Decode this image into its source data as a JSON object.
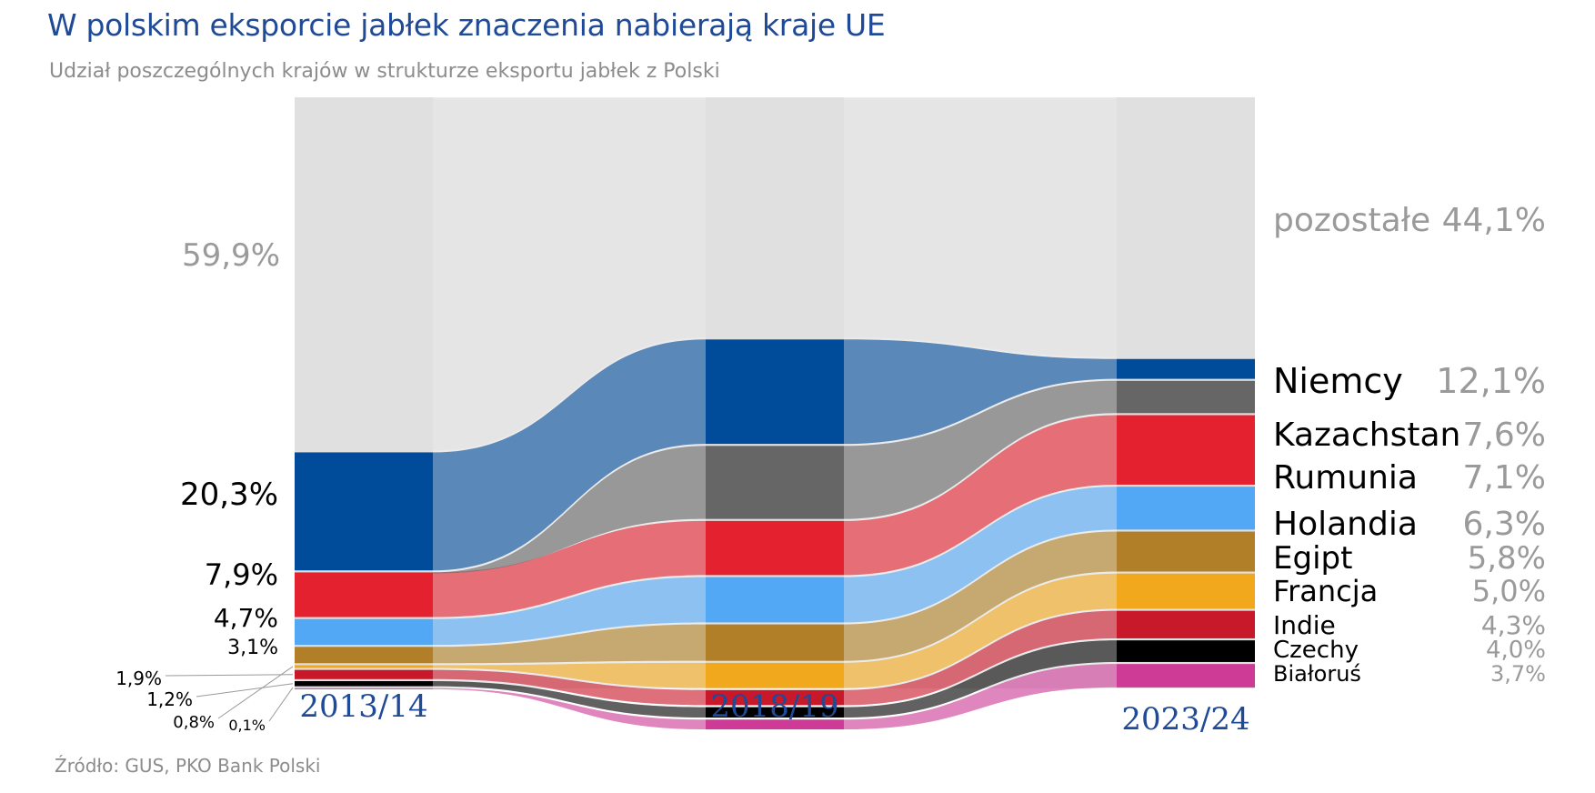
{
  "title": "W polskim eksporcie jabłek znaczenia nabierają kraje UE",
  "subtitle": "Udział poszczególnych krajów w strukturze eksportu jabłek z Polski",
  "source": "Źródło: GUS, PKO Bank Polski",
  "chart_data": {
    "type": "sankey-bump",
    "periods": [
      "2013/14",
      "2018/19",
      "2023/24"
    ],
    "series": [
      {
        "name": "pozostałe",
        "color": "#e5e5e5",
        "values": [
          59.9,
          40.8,
          44.1
        ]
      },
      {
        "name": "Białoruś",
        "color": "#004c9b",
        "values": [
          20.3,
          18.0,
          3.7
        ]
      },
      {
        "name": "Egipt",
        "color": "#666666",
        "values": [
          0.0,
          12.7,
          5.8
        ]
      },
      {
        "name": "Niemcy",
        "color": "#e4222f",
        "values": [
          7.9,
          9.5,
          12.1
        ]
      },
      {
        "name": "Kazachstan",
        "color": "#52a8f5",
        "values": [
          4.7,
          8.0,
          7.6
        ]
      },
      {
        "name": "Rumunia",
        "color": "#b07f27",
        "values": [
          3.1,
          6.5,
          7.1
        ]
      },
      {
        "name": "Holandia",
        "color": "#f2a81d",
        "values": [
          0.8,
          4.6,
          6.3
        ]
      },
      {
        "name": "Francja",
        "color": "#c8192a",
        "values": [
          1.9,
          2.9,
          5.0
        ]
      },
      {
        "name": "Czechy",
        "color": "#000000",
        "values": [
          1.2,
          2.1,
          4.0
        ]
      },
      {
        "name": "Indie",
        "color": "#cd3b96",
        "values": [
          0.1,
          2.0,
          4.3
        ]
      }
    ],
    "left_labels": [
      "59,9%",
      "20,3%",
      "7,9%",
      "4,7%",
      "3,1%",
      "1,9%",
      "1,2%",
      "0,8%",
      "0,1%"
    ],
    "right_labels": [
      {
        "name": "pozostałe",
        "value": "44,1%"
      },
      {
        "name": "Niemcy",
        "value": "12,1%"
      },
      {
        "name": "Kazachstan",
        "value": "7,6%"
      },
      {
        "name": "Rumunia",
        "value": "7,1%"
      },
      {
        "name": "Holandia",
        "value": "6,3%"
      },
      {
        "name": "Egipt",
        "value": "5,8%"
      },
      {
        "name": "Francja",
        "value": "5,0%"
      },
      {
        "name": "Indie",
        "value": "4,3%"
      },
      {
        "name": "Czechy",
        "value": "4,0%"
      },
      {
        "name": "Białoruś",
        "value": "3,7%"
      }
    ],
    "legend": "right",
    "grid": false
  }
}
